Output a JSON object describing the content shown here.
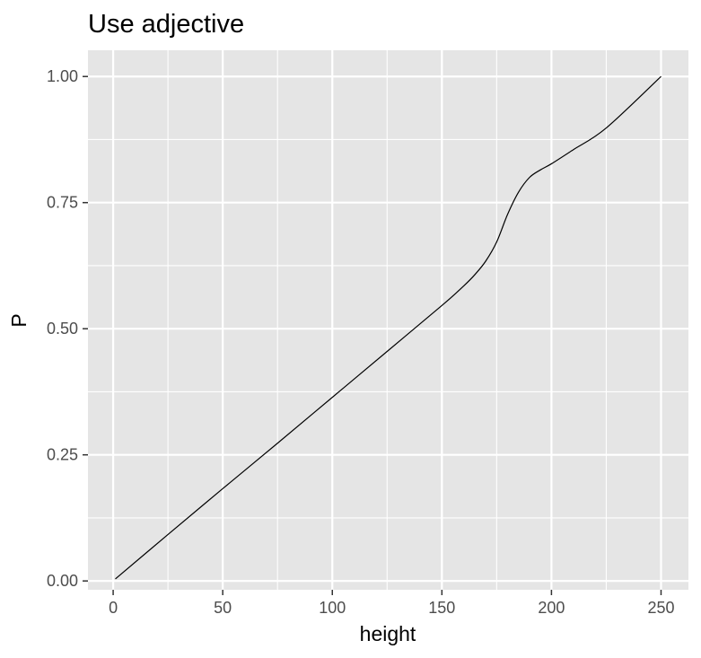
{
  "chart_data": {
    "type": "line",
    "title": "Use adjective",
    "xlabel": "height",
    "ylabel": "P",
    "xlim": [
      -11.5,
      262.5
    ],
    "ylim": [
      -0.0175,
      1.052
    ],
    "x_ticks": [
      0,
      50,
      100,
      150,
      200,
      250
    ],
    "x_tick_labels": [
      "0",
      "50",
      "100",
      "150",
      "200",
      "250"
    ],
    "y_ticks": [
      0,
      0.25,
      0.5,
      0.75,
      1
    ],
    "y_tick_labels": [
      "0.00",
      "0.25",
      "0.50",
      "0.75",
      "1.00"
    ],
    "grid": true,
    "colors": {
      "panel": "#e5e5e5",
      "grid": "#ffffff",
      "line": "#000000",
      "tick": "#4d4d4d"
    },
    "series": [
      {
        "x": [
          1,
          25,
          50,
          75,
          100,
          125,
          150,
          160,
          165,
          170,
          175,
          180,
          185,
          190,
          195,
          200,
          210,
          225,
          250
        ],
        "y": [
          0.004,
          0.092,
          0.183,
          0.273,
          0.364,
          0.455,
          0.546,
          0.585,
          0.607,
          0.634,
          0.672,
          0.727,
          0.771,
          0.8,
          0.815,
          0.827,
          0.855,
          0.898,
          1.0
        ]
      }
    ]
  }
}
